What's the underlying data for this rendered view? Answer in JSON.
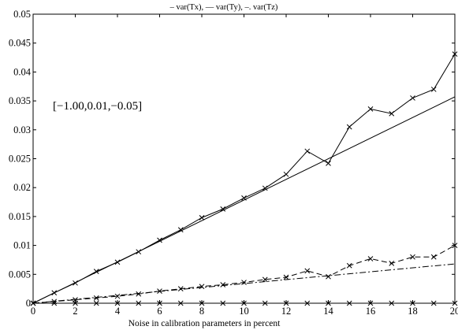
{
  "chart_data": {
    "type": "line",
    "title": "– var(Tx), –– var(Ty), –. var(Tz)",
    "xlabel": "Noise in calibration parameters in percent",
    "ylabel": "",
    "xlim": [
      0,
      20
    ],
    "ylim": [
      0,
      0.05
    ],
    "grid": false,
    "annotation": "[−1.00,0.01,−0.05]",
    "xticks": [
      0,
      2,
      4,
      6,
      8,
      10,
      12,
      14,
      16,
      18,
      20
    ],
    "yticks": [
      0,
      0.005,
      0.01,
      0.015,
      0.02,
      0.025,
      0.03,
      0.035,
      0.04,
      0.045,
      0.05
    ],
    "x": [
      0,
      1,
      2,
      3,
      4,
      5,
      6,
      7,
      8,
      9,
      10,
      11,
      12,
      13,
      14,
      15,
      16,
      17,
      18,
      19,
      20
    ],
    "series": [
      {
        "style": "solid",
        "marker": "x",
        "values": [
          0,
          0.0018,
          0.0035,
          0.0055,
          0.0071,
          0.0089,
          0.0109,
          0.0127,
          0.0148,
          0.0163,
          0.0182,
          0.0199,
          0.0223,
          0.0263,
          0.0242,
          0.0305,
          0.0336,
          0.0328,
          0.0355,
          0.037,
          0.0431
        ]
      },
      {
        "style": "dashed",
        "marker": "x",
        "values": [
          0,
          0.0003,
          0.0006,
          0.0009,
          0.0012,
          0.0016,
          0.0021,
          0.0025,
          0.0029,
          0.0032,
          0.0036,
          0.0041,
          0.0045,
          0.0056,
          0.0046,
          0.0065,
          0.0077,
          0.0069,
          0.008,
          0.008,
          0.01
        ]
      },
      {
        "style": "dashdot",
        "marker": "x",
        "values": [
          0,
          0,
          0,
          0,
          0,
          0,
          0,
          0,
          0,
          0,
          0,
          0,
          0,
          0,
          0,
          0,
          0,
          0,
          0,
          0,
          0
        ]
      }
    ],
    "fits": [
      {
        "style": "solid",
        "x": [
          0,
          20
        ],
        "values": [
          0,
          0.0357
        ]
      },
      {
        "style": "dashdot",
        "x": [
          0,
          20
        ],
        "values": [
          0,
          0.0068
        ]
      }
    ]
  }
}
